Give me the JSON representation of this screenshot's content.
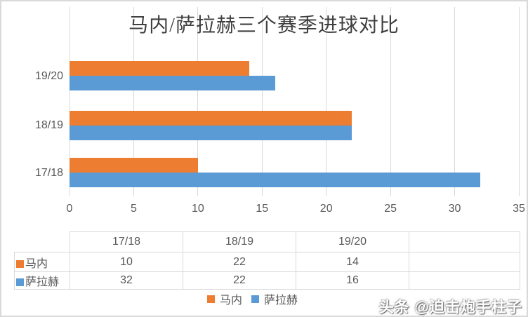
{
  "title": "马内/萨拉赫三个赛季进球对比",
  "watermark": "头条 @迫击炮手柱子",
  "colors": {
    "mane_orange": "#ED7D31",
    "salah_blue": "#5B9BD5",
    "gridline": "#D9D9D9",
    "axis_text": "#595959",
    "title_text": "#3F3F3F",
    "table_border": "#D9D9D9"
  },
  "chart_data": {
    "type": "bar",
    "orientation": "horizontal",
    "title": "马内/萨拉赫三个赛季进球对比",
    "categories": [
      "17/18",
      "18/19",
      "19/20"
    ],
    "category_order_top_to_bottom": [
      "19/20",
      "18/19",
      "17/18"
    ],
    "series": [
      {
        "name": "马内",
        "color": "#ED7D31",
        "values": [
          10,
          22,
          14
        ]
      },
      {
        "name": "萨拉赫",
        "color": "#5B9BD5",
        "values": [
          32,
          22,
          16
        ]
      }
    ],
    "xlim": [
      0,
      35
    ],
    "xticks": [
      0,
      5,
      10,
      15,
      20,
      25,
      30,
      35
    ],
    "grid": true,
    "legend_position": "bottom"
  },
  "table": {
    "columns": [
      "",
      "17/18",
      "18/19",
      "19/20",
      ""
    ],
    "rows": [
      {
        "label": "马内",
        "swatch": "#ED7D31",
        "values": [
          "10",
          "22",
          "14",
          ""
        ]
      },
      {
        "label": "萨拉赫",
        "swatch": "#5B9BD5",
        "values": [
          "32",
          "22",
          "16",
          ""
        ]
      }
    ]
  },
  "legend": {
    "items": [
      {
        "label": "马内",
        "color": "#ED7D31"
      },
      {
        "label": "萨拉赫",
        "color": "#5B9BD5"
      }
    ]
  }
}
